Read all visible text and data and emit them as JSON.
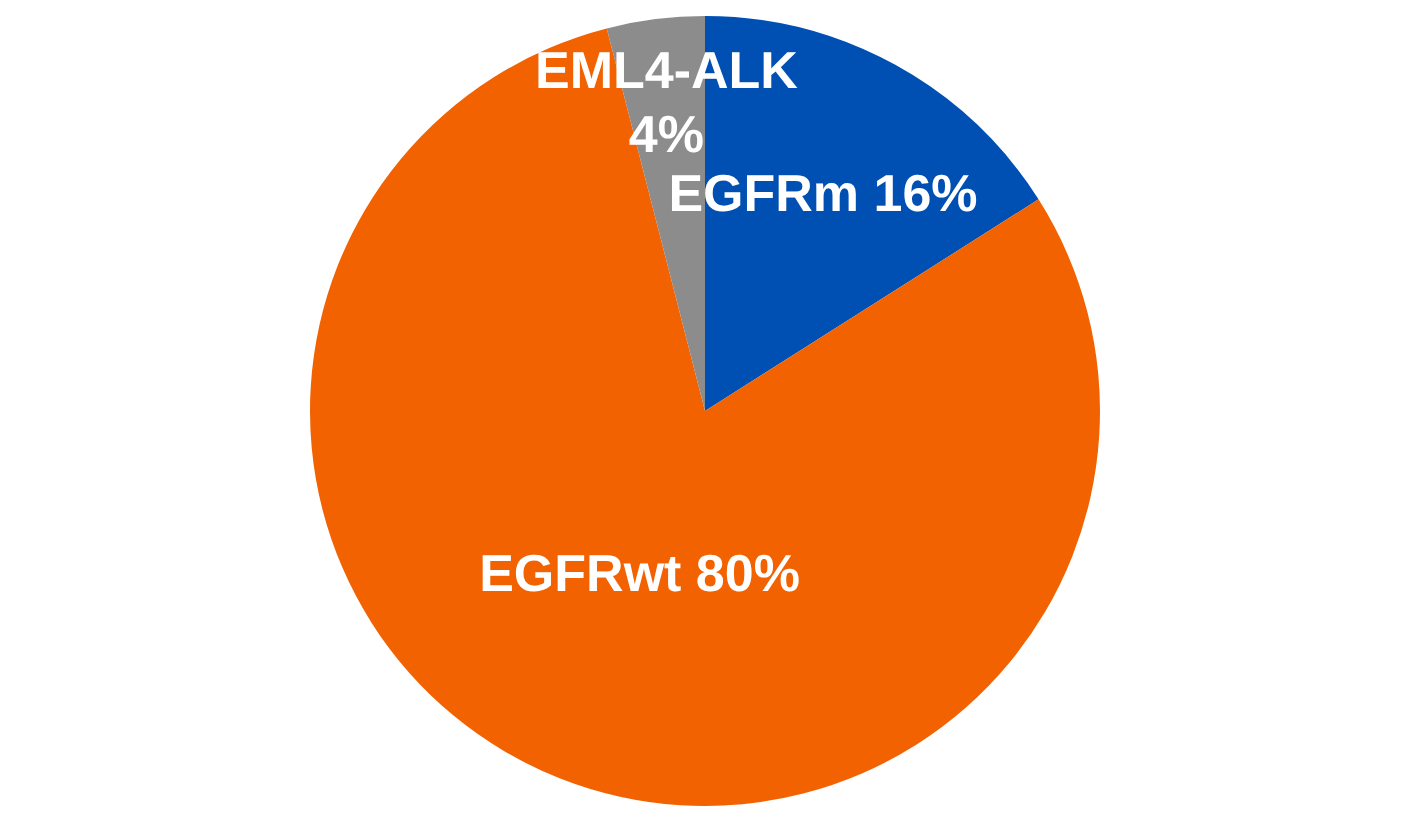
{
  "chart_data": {
    "type": "pie",
    "categories": [
      "EGFRm",
      "EGFRwt",
      "EML4-ALK"
    ],
    "values": [
      16,
      80,
      4
    ],
    "value_labels": [
      "16%",
      "80%",
      "4%"
    ],
    "colors": [
      "#0050b4",
      "#f26200",
      "#8c8c8c"
    ],
    "legend": false
  }
}
